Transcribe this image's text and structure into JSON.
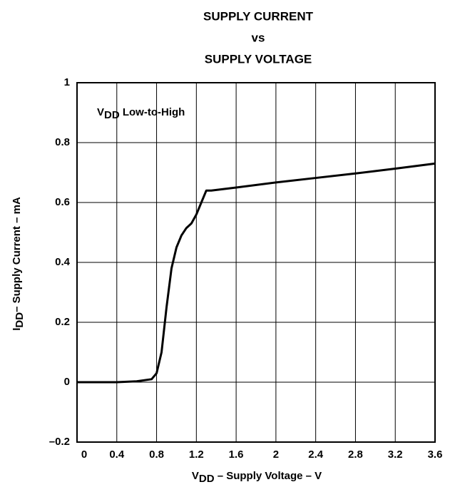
{
  "chart_data": {
    "type": "line",
    "title": [
      "SUPPLY CURRENT",
      "vs",
      "SUPPLY VOLTAGE"
    ],
    "x_label": [
      "V",
      "DD",
      " – Supply Voltage – V"
    ],
    "y_label": [
      "I",
      "DD",
      "– Supply Current – mA"
    ],
    "annotation": [
      "V",
      "DD",
      " Low-to-High"
    ],
    "series": [
      {
        "color": "#000000",
        "x": [
          0,
          0.4,
          0.6,
          0.75,
          0.8,
          0.85,
          0.9,
          0.95,
          1.0,
          1.05,
          1.1,
          1.15,
          1.2,
          1.25,
          1.3,
          1.35,
          1.6,
          2.0,
          2.4,
          2.8,
          3.2,
          3.6
        ],
        "values": [
          0,
          0,
          0.003,
          0.01,
          0.03,
          0.1,
          0.25,
          0.38,
          0.45,
          0.49,
          0.515,
          0.53,
          0.56,
          0.6,
          0.64,
          0.64,
          0.65,
          0.667,
          0.682,
          0.697,
          0.713,
          0.73
        ]
      }
    ],
    "xlim": [
      0,
      3.6
    ],
    "xticks": [
      0,
      0.4,
      0.8,
      1.2,
      1.6,
      2,
      2.4,
      2.8,
      3.2,
      3.6
    ],
    "ylim": [
      -0.2,
      1
    ],
    "yticks": [
      {
        "value": -0.2,
        "label": "–0.2"
      },
      0,
      0.2,
      0.4,
      0.6,
      0.8,
      1
    ],
    "grid": true
  }
}
